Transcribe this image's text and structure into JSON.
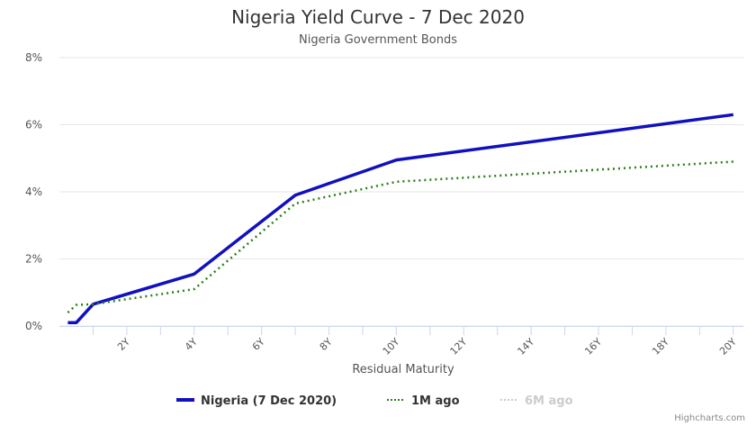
{
  "chart_data": {
    "type": "line",
    "title": "Nigeria Yield Curve - 7 Dec 2020",
    "subtitle": "Nigeria Government Bonds",
    "xlabel": "Residual Maturity",
    "ylabel": "",
    "xlim": [
      0,
      20.3
    ],
    "ylim": [
      0,
      8
    ],
    "yticks": [
      0,
      2,
      4,
      6,
      8
    ],
    "ytick_labels": [
      "0%",
      "2%",
      "4%",
      "6%",
      "8%"
    ],
    "xticks": [
      2,
      4,
      6,
      8,
      10,
      12,
      14,
      16,
      18,
      20
    ],
    "xtick_labels": [
      "2Y",
      "4Y",
      "6Y",
      "8Y",
      "10Y",
      "12Y",
      "14Y",
      "16Y",
      "18Y",
      "20Y"
    ],
    "grid": true,
    "legend_position": "bottom",
    "series": [
      {
        "name": "Nigeria (7 Dec 2020)",
        "color": "#1010c0",
        "style": "solid",
        "visible": true,
        "x": [
          0.25,
          0.5,
          1,
          4,
          7,
          10,
          20
        ],
        "y": [
          0.1,
          0.1,
          0.65,
          1.55,
          3.9,
          4.95,
          6.3
        ]
      },
      {
        "name": "1M ago",
        "color": "#2e7d1e",
        "style": "dotted",
        "visible": true,
        "x": [
          0.25,
          0.5,
          1,
          4,
          7,
          10,
          20
        ],
        "y": [
          0.4,
          0.63,
          0.65,
          1.1,
          3.65,
          4.3,
          4.9
        ]
      },
      {
        "name": "6M ago",
        "color": "#cccccc",
        "style": "dotted",
        "visible": false,
        "x": [],
        "y": []
      }
    ],
    "credits": "Highcharts.com"
  }
}
